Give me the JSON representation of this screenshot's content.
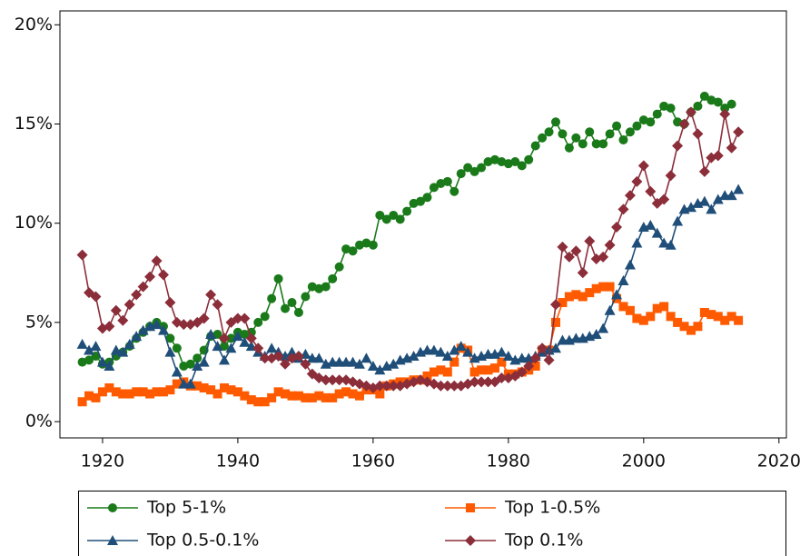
{
  "chart_data": {
    "type": "line",
    "x": [
      1917,
      1918,
      1919,
      1920,
      1921,
      1922,
      1923,
      1924,
      1925,
      1926,
      1927,
      1928,
      1929,
      1930,
      1931,
      1932,
      1933,
      1934,
      1935,
      1936,
      1937,
      1938,
      1939,
      1940,
      1941,
      1942,
      1943,
      1944,
      1945,
      1946,
      1947,
      1948,
      1949,
      1950,
      1951,
      1952,
      1953,
      1954,
      1955,
      1956,
      1957,
      1958,
      1959,
      1960,
      1961,
      1962,
      1963,
      1964,
      1965,
      1966,
      1967,
      1968,
      1969,
      1970,
      1971,
      1972,
      1973,
      1974,
      1975,
      1976,
      1977,
      1978,
      1979,
      1980,
      1981,
      1982,
      1983,
      1984,
      1985,
      1986,
      1987,
      1988,
      1989,
      1990,
      1991,
      1992,
      1993,
      1994,
      1995,
      1996,
      1997,
      1998,
      1999,
      2000,
      2001,
      2002,
      2003,
      2004,
      2005,
      2006,
      2007,
      2008,
      2009,
      2010,
      2011,
      2012,
      2013,
      2014
    ],
    "series": [
      {
        "name": "Top 5-1%",
        "color": "#1a7a1a",
        "marker": "circle",
        "values": [
          3.0,
          3.1,
          3.3,
          2.9,
          3.0,
          3.3,
          3.5,
          3.8,
          4.2,
          4.5,
          4.8,
          5.0,
          4.8,
          4.2,
          3.7,
          2.8,
          2.9,
          3.2,
          3.6,
          4.3,
          4.4,
          3.8,
          4.2,
          4.5,
          4.4,
          4.5,
          5.0,
          5.3,
          6.2,
          7.2,
          5.7,
          6.0,
          5.5,
          6.3,
          6.8,
          6.7,
          6.8,
          7.2,
          7.8,
          8.7,
          8.6,
          8.9,
          9.0,
          8.9,
          10.4,
          10.2,
          10.4,
          10.2,
          10.6,
          11.0,
          11.1,
          11.3,
          11.8,
          12.0,
          12.1,
          11.6,
          12.5,
          12.8,
          12.6,
          12.8,
          13.1,
          13.2,
          13.1,
          13.0,
          13.1,
          12.9,
          13.2,
          13.9,
          14.3,
          14.6,
          15.1,
          14.5,
          13.8,
          14.3,
          14.0,
          14.6,
          14.0,
          14.0,
          14.5,
          14.9,
          14.2,
          14.6,
          14.9,
          15.2,
          15.1,
          15.5,
          15.9,
          15.8,
          15.1,
          15.0,
          15.6,
          15.9,
          16.4,
          16.2,
          16.1,
          15.8,
          16.0,
          null
        ]
      },
      {
        "name": "Top 1-0.5%",
        "color": "#ff5a00",
        "marker": "square",
        "values": [
          1.0,
          1.3,
          1.2,
          1.5,
          1.7,
          1.5,
          1.4,
          1.4,
          1.5,
          1.5,
          1.4,
          1.5,
          1.5,
          1.6,
          1.9,
          2.0,
          1.8,
          1.8,
          1.7,
          1.6,
          1.4,
          1.7,
          1.6,
          1.5,
          1.3,
          1.1,
          1.0,
          1.0,
          1.2,
          1.5,
          1.4,
          1.3,
          1.3,
          1.2,
          1.2,
          1.3,
          1.2,
          1.2,
          1.4,
          1.5,
          1.4,
          1.3,
          1.6,
          1.6,
          1.4,
          1.8,
          1.9,
          2.0,
          2.0,
          2.1,
          2.1,
          2.3,
          2.5,
          2.6,
          2.5,
          3.0,
          3.7,
          3.6,
          2.5,
          2.6,
          2.6,
          2.7,
          3.0,
          2.4,
          2.4,
          2.5,
          2.6,
          2.8,
          3.6,
          3.6,
          5.0,
          6.0,
          6.3,
          6.4,
          6.3,
          6.5,
          6.7,
          6.8,
          6.8,
          6.2,
          5.8,
          5.6,
          5.2,
          5.1,
          5.3,
          5.7,
          5.8,
          5.3,
          5.0,
          4.8,
          4.6,
          4.8,
          5.5,
          5.4,
          5.3,
          5.1,
          5.3,
          5.1
        ]
      },
      {
        "name": "Top 0.5-0.1%",
        "color": "#1f4e79",
        "marker": "triangle",
        "values": [
          3.9,
          3.6,
          3.8,
          3.0,
          2.8,
          3.6,
          3.5,
          3.9,
          4.3,
          4.6,
          4.8,
          4.9,
          4.6,
          3.5,
          2.5,
          1.9,
          1.9,
          2.8,
          3.0,
          4.4,
          3.8,
          3.1,
          3.7,
          4.3,
          4.0,
          3.8,
          3.5,
          3.3,
          3.7,
          3.5,
          3.3,
          3.5,
          3.2,
          3.4,
          3.2,
          3.2,
          2.9,
          3.0,
          3.0,
          3.0,
          3.0,
          2.9,
          3.2,
          2.8,
          2.6,
          2.8,
          2.9,
          3.1,
          3.2,
          3.3,
          3.5,
          3.6,
          3.6,
          3.5,
          3.3,
          3.6,
          3.8,
          3.5,
          3.2,
          3.3,
          3.4,
          3.4,
          3.5,
          3.3,
          3.1,
          3.2,
          3.2,
          3.3,
          3.5,
          3.6,
          3.7,
          4.1,
          4.1,
          4.2,
          4.2,
          4.3,
          4.4,
          4.7,
          5.6,
          6.4,
          7.1,
          7.9,
          9.0,
          9.8,
          9.9,
          9.5,
          9.0,
          8.9,
          10.1,
          10.7,
          10.8,
          11.0,
          11.1,
          10.7,
          11.2,
          11.4,
          11.4,
          11.7
        ]
      },
      {
        "name": "Top 0.1%",
        "color": "#8b2e3a",
        "marker": "diamond",
        "values": [
          8.4,
          6.5,
          6.3,
          4.7,
          4.8,
          5.6,
          5.1,
          5.9,
          6.4,
          6.8,
          7.3,
          8.1,
          7.4,
          6.0,
          5.0,
          4.9,
          4.9,
          5.0,
          5.2,
          6.4,
          5.9,
          4.2,
          5.0,
          5.2,
          5.2,
          4.2,
          3.7,
          3.2,
          3.2,
          3.3,
          2.9,
          3.2,
          3.3,
          2.9,
          2.4,
          2.2,
          2.1,
          2.1,
          2.1,
          2.1,
          2.0,
          1.9,
          1.8,
          1.7,
          1.8,
          1.8,
          1.8,
          1.8,
          1.9,
          2.0,
          2.1,
          2.0,
          1.9,
          1.8,
          1.8,
          1.8,
          1.8,
          1.9,
          2.0,
          2.0,
          2.0,
          2.0,
          2.2,
          2.2,
          2.3,
          2.5,
          2.8,
          3.2,
          3.7,
          3.1,
          5.9,
          8.8,
          8.3,
          8.6,
          7.5,
          9.1,
          8.2,
          8.3,
          8.9,
          9.8,
          10.7,
          11.4,
          12.1,
          12.9,
          11.6,
          11.0,
          11.2,
          12.4,
          13.9,
          15.0,
          15.6,
          14.5,
          12.6,
          13.3,
          13.4,
          15.5,
          13.8,
          14.6
        ]
      }
    ],
    "xlim": [
      1913.7,
      2021.1
    ],
    "xticks": [
      1920,
      1940,
      1960,
      1980,
      2000,
      2020
    ],
    "ylim": [
      -0.82,
      20.7
    ],
    "yticks": [
      {
        "value": 0,
        "label": "0%"
      },
      {
        "value": 5,
        "label": "5%"
      },
      {
        "value": 10,
        "label": "10%"
      },
      {
        "value": 15,
        "label": "15%"
      },
      {
        "value": 20,
        "label": "20%"
      }
    ],
    "grid": false,
    "legend": "bottom"
  }
}
